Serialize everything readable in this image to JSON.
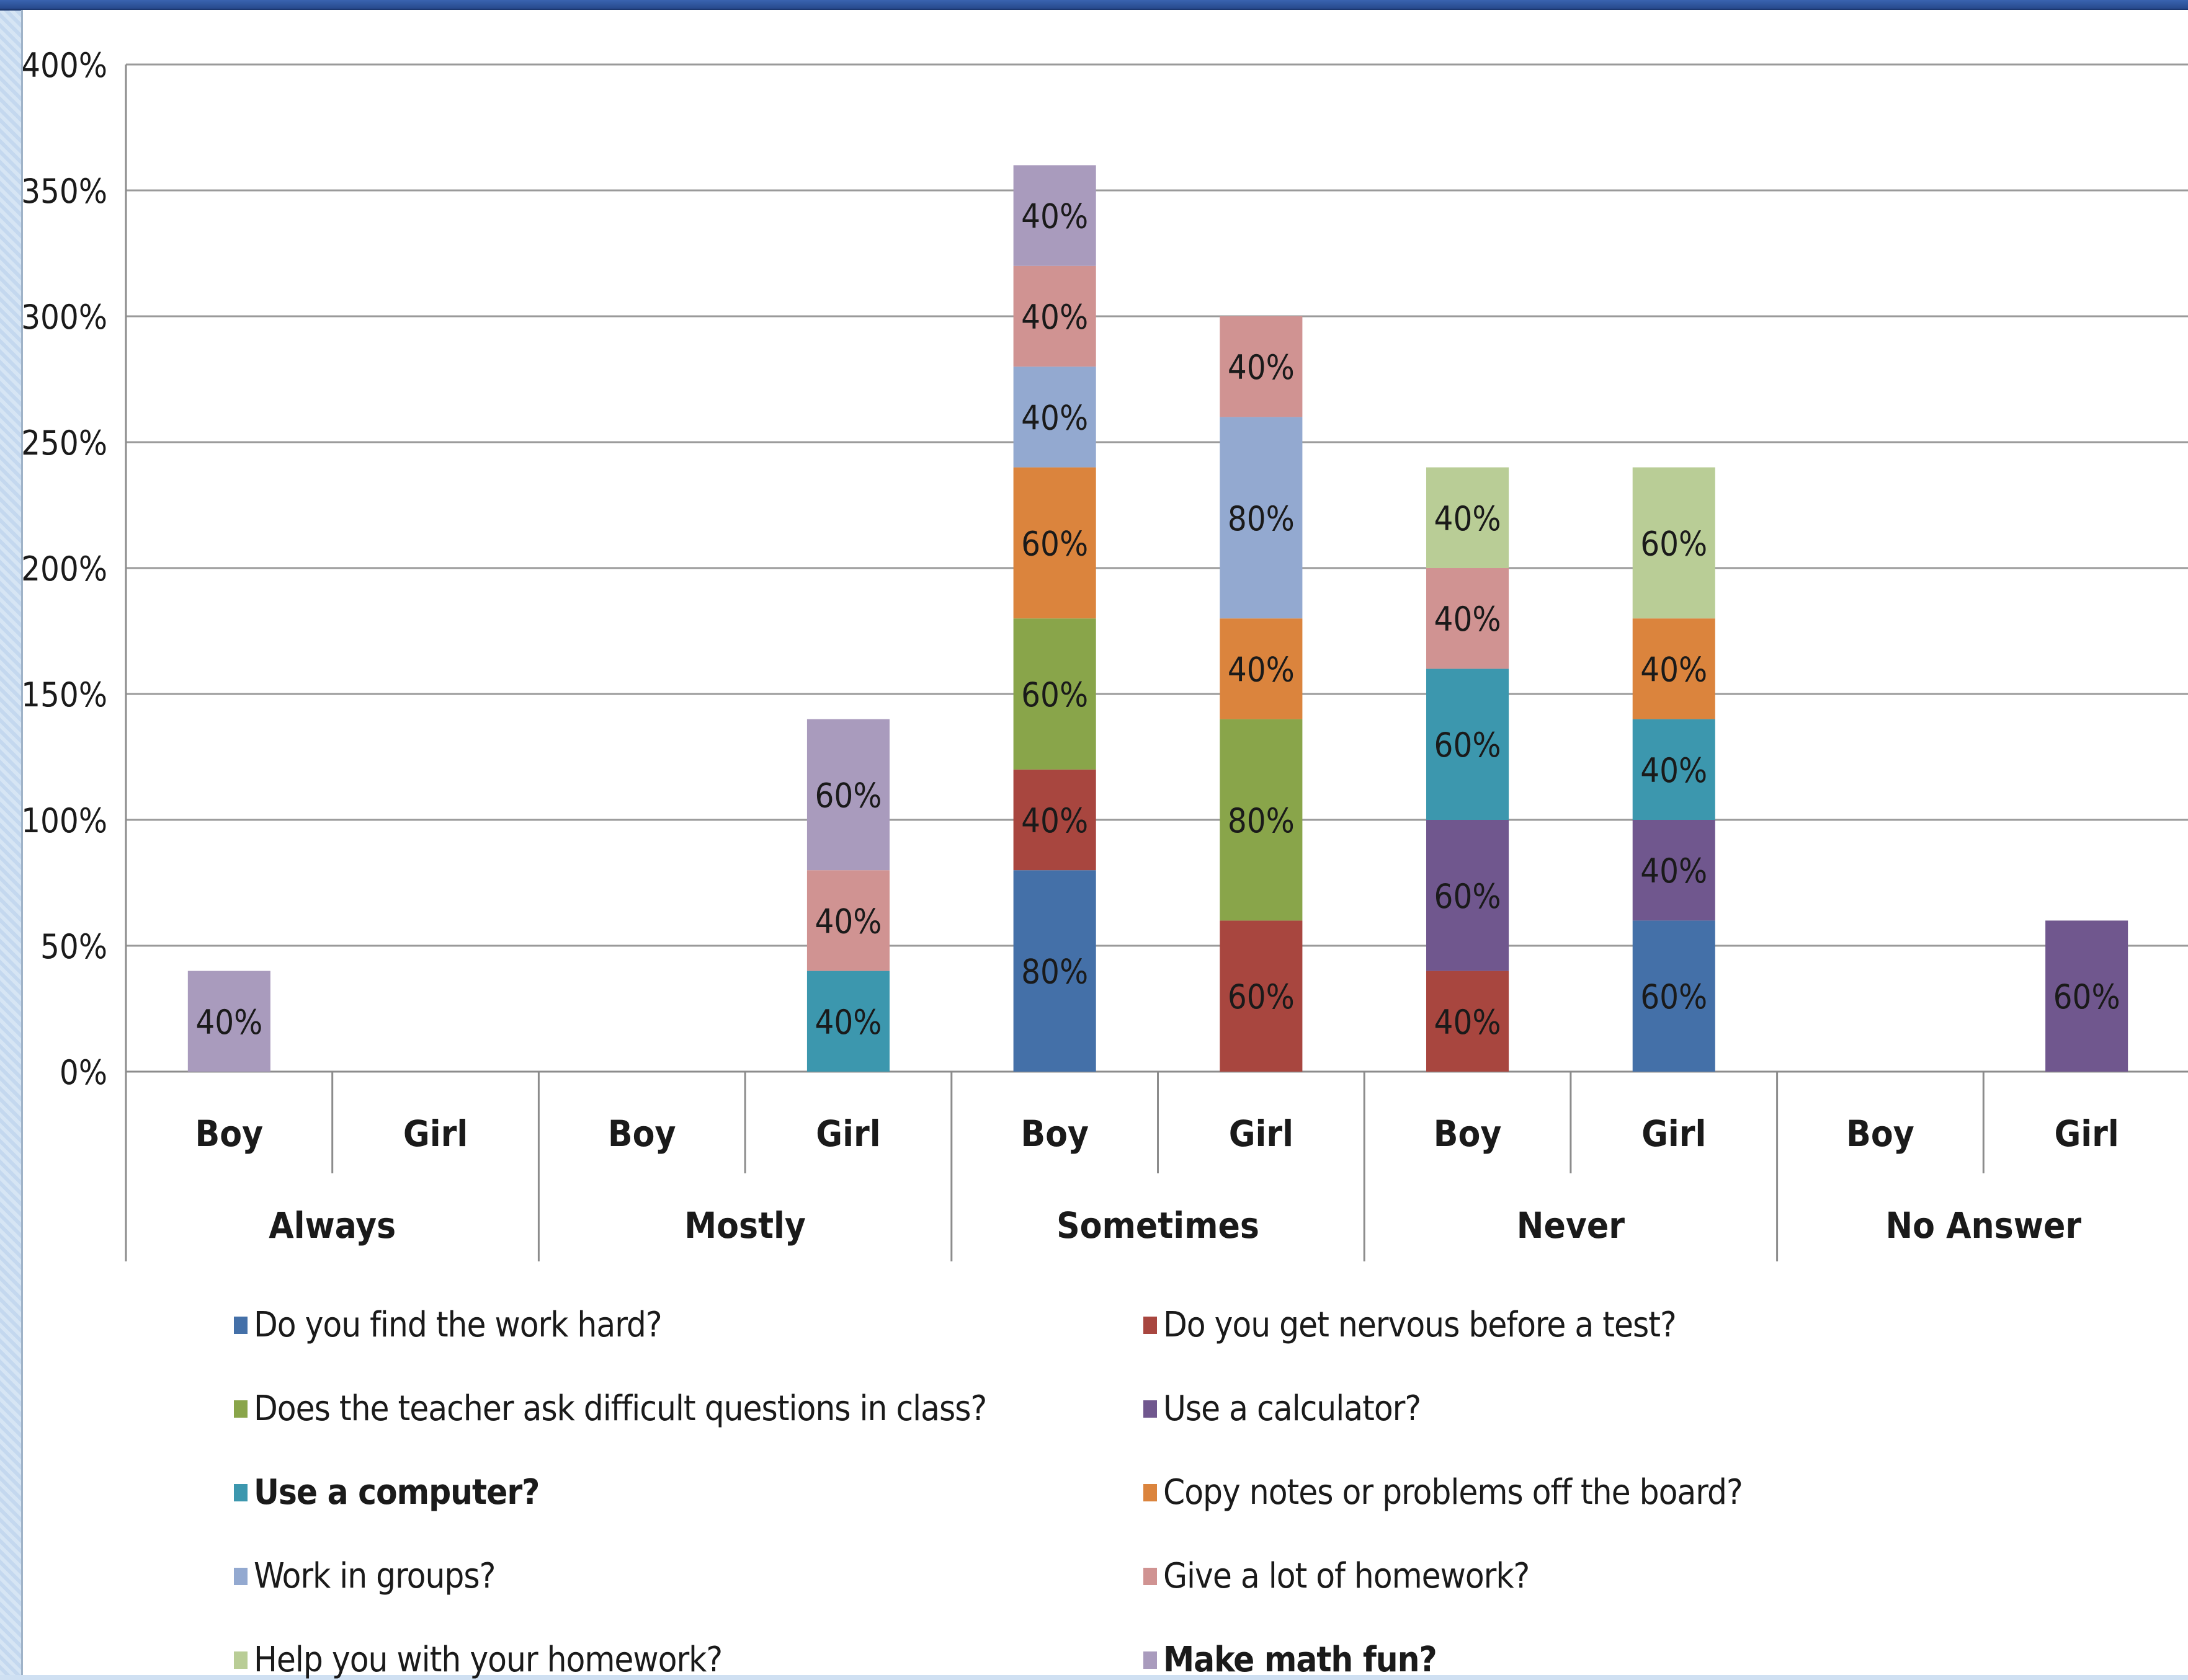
{
  "chart_data": {
    "type": "bar",
    "stacked": true,
    "title": "",
    "xlabel": "",
    "ylabel": "",
    "ylim": [
      0,
      400
    ],
    "yticks": [
      "0%",
      "50%",
      "100%",
      "150%",
      "200%",
      "250%",
      "300%",
      "350%",
      "400%"
    ],
    "grid": true,
    "legend_position": "bottom",
    "groups": [
      "Always",
      "Mostly",
      "Sometimes",
      "Never",
      "No Answer"
    ],
    "categories": [
      "Boy",
      "Girl",
      "Boy",
      "Girl",
      "Boy",
      "Girl",
      "Boy",
      "Girl",
      "Boy",
      "Girl"
    ],
    "series": [
      {
        "name": "Do you find the work hard?",
        "color": "#4470a8",
        "bold": false,
        "values": [
          0,
          0,
          0,
          0,
          80,
          0,
          0,
          60,
          0,
          0
        ]
      },
      {
        "name": "Do you get nervous before a test?",
        "color": "#a8463f",
        "bold": false,
        "values": [
          0,
          0,
          0,
          0,
          40,
          60,
          40,
          0,
          0,
          0
        ]
      },
      {
        "name": "Does the teacher ask difficult questions in class?",
        "color": "#89a54a",
        "bold": false,
        "values": [
          0,
          0,
          0,
          0,
          60,
          80,
          0,
          0,
          0,
          0
        ]
      },
      {
        "name": "Use a calculator?",
        "color": "#70578e",
        "bold": false,
        "values": [
          0,
          0,
          0,
          0,
          0,
          0,
          60,
          40,
          0,
          60
        ]
      },
      {
        "name": "Use a computer?",
        "color": "#3c97ae",
        "bold": true,
        "values": [
          0,
          0,
          0,
          40,
          0,
          0,
          60,
          40,
          0,
          0
        ]
      },
      {
        "name": "Copy notes or problems off the board?",
        "color": "#db843d",
        "bold": false,
        "values": [
          0,
          0,
          0,
          0,
          60,
          40,
          0,
          40,
          0,
          0
        ]
      },
      {
        "name": "Work in groups?",
        "color": "#93a9d0",
        "bold": false,
        "values": [
          0,
          0,
          0,
          0,
          40,
          80,
          0,
          0,
          0,
          0
        ]
      },
      {
        "name": "Give a lot of homework?",
        "color": "#d09392",
        "bold": false,
        "values": [
          0,
          0,
          0,
          40,
          40,
          40,
          40,
          0,
          0,
          0
        ]
      },
      {
        "name": "Help you with your homework?",
        "color": "#b9cd96",
        "bold": false,
        "values": [
          0,
          0,
          0,
          0,
          0,
          0,
          40,
          60,
          0,
          0
        ]
      },
      {
        "name": "Make math fun?",
        "color": "#a99bbd",
        "bold": true,
        "values": [
          40,
          0,
          0,
          60,
          40,
          0,
          0,
          0,
          0,
          0
        ]
      }
    ]
  }
}
